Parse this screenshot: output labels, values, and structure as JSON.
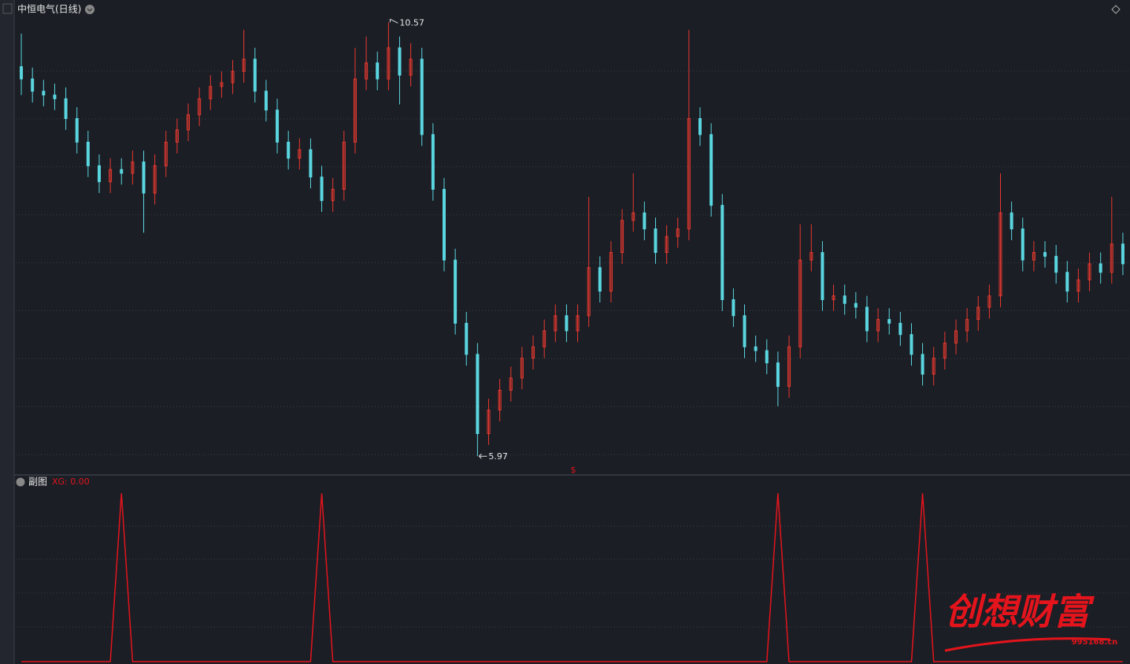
{
  "chart_data": [
    {
      "type": "candlestick",
      "title": "中恒电气(日线)",
      "marker": "$",
      "up_color": "#e8392f",
      "down_color": "#5ad6e0",
      "ylim": [
        5.78,
        10.74
      ],
      "open": [
        10.1,
        9.97,
        9.84,
        9.8,
        9.76,
        9.55,
        9.3,
        9.05,
        8.88,
        9.01,
        8.97,
        9.09,
        8.76,
        9.05,
        9.3,
        9.43,
        9.59,
        9.76,
        9.89,
        9.93,
        10.05,
        10.18,
        9.84,
        9.64,
        9.3,
        9.13,
        9.22,
        8.93,
        8.68,
        8.8,
        9.3,
        9.97,
        10.14,
        9.97,
        10.3,
        10.01,
        10.18,
        9.38,
        8.8,
        8.05,
        7.38,
        7.05,
        6.21,
        6.46,
        6.67,
        6.8,
        7.01,
        7.13,
        7.3,
        7.46,
        7.3,
        7.46,
        7.97,
        7.72,
        8.13,
        8.47,
        8.55,
        8.38,
        8.13,
        8.3,
        8.38,
        9.55,
        9.38,
        8.63,
        7.63,
        7.46,
        7.13,
        7.09,
        6.96,
        6.71,
        7.13,
        8.05,
        8.13,
        7.63,
        7.67,
        7.59,
        7.55,
        7.3,
        7.42,
        7.38,
        7.26,
        7.05,
        6.84,
        7.01,
        7.17,
        7.3,
        7.42,
        7.55,
        7.67,
        8.55,
        8.38,
        8.05,
        8.13,
        8.09,
        7.92,
        7.72,
        7.84,
        8.01,
        7.92,
        8.22
      ],
      "high": [
        10.45,
        10.09,
        9.96,
        9.92,
        9.88,
        9.67,
        9.42,
        9.17,
        9.13,
        9.13,
        9.21,
        9.21,
        9.17,
        9.42,
        9.55,
        9.71,
        9.88,
        10.01,
        10.05,
        10.17,
        10.49,
        10.3,
        9.96,
        9.76,
        9.42,
        9.34,
        9.34,
        9.05,
        8.92,
        9.42,
        10.3,
        10.42,
        10.26,
        10.57,
        10.42,
        10.35,
        10.3,
        9.5,
        8.92,
        8.17,
        7.5,
        7.17,
        6.58,
        6.79,
        6.92,
        7.13,
        7.25,
        7.42,
        7.58,
        7.58,
        7.58,
        8.72,
        8.09,
        8.25,
        8.59,
        8.97,
        8.67,
        8.5,
        8.42,
        8.5,
        10.49,
        9.67,
        9.5,
        8.75,
        7.75,
        7.58,
        7.25,
        7.21,
        7.08,
        7.25,
        8.43,
        8.43,
        8.25,
        7.79,
        7.79,
        7.71,
        7.67,
        7.54,
        7.54,
        7.5,
        7.38,
        7.17,
        7.13,
        7.29,
        7.42,
        7.54,
        7.67,
        7.79,
        8.97,
        8.67,
        8.5,
        8.25,
        8.25,
        8.21,
        8.04,
        7.96,
        8.13,
        8.13,
        8.72,
        8.34
      ],
      "low": [
        9.8,
        9.72,
        9.68,
        9.64,
        9.43,
        9.18,
        8.93,
        8.76,
        8.76,
        8.85,
        8.85,
        8.34,
        8.64,
        8.93,
        9.18,
        9.31,
        9.47,
        9.64,
        9.77,
        9.81,
        9.93,
        9.72,
        9.52,
        9.18,
        9.01,
        9.01,
        8.81,
        8.56,
        8.56,
        8.68,
        9.18,
        9.85,
        9.85,
        9.85,
        9.7,
        9.89,
        9.26,
        8.68,
        7.93,
        7.26,
        6.93,
        5.97,
        6.09,
        6.34,
        6.55,
        6.68,
        6.89,
        7.01,
        7.18,
        7.18,
        7.18,
        7.34,
        7.6,
        7.6,
        8.01,
        8.35,
        8.26,
        8.01,
        8.01,
        8.18,
        8.26,
        9.26,
        8.51,
        7.51,
        7.34,
        7.01,
        6.97,
        6.84,
        6.5,
        6.59,
        7.01,
        7.93,
        7.51,
        7.51,
        7.47,
        7.43,
        7.18,
        7.18,
        7.26,
        7.14,
        6.93,
        6.72,
        6.72,
        6.89,
        7.05,
        7.18,
        7.3,
        7.43,
        7.55,
        8.26,
        7.93,
        7.93,
        7.97,
        7.8,
        7.6,
        7.6,
        7.72,
        7.8,
        7.8,
        7.89
      ],
      "close": [
        9.97,
        9.84,
        9.8,
        9.76,
        9.55,
        9.3,
        9.05,
        8.88,
        9.01,
        8.97,
        9.09,
        8.76,
        9.05,
        9.3,
        9.43,
        9.59,
        9.76,
        9.89,
        9.93,
        10.05,
        10.18,
        9.84,
        9.64,
        9.3,
        9.13,
        9.22,
        8.93,
        8.68,
        8.8,
        9.3,
        9.97,
        10.14,
        9.97,
        10.3,
        10.01,
        10.18,
        9.38,
        8.8,
        8.05,
        7.38,
        7.05,
        6.21,
        6.46,
        6.67,
        6.8,
        7.01,
        7.13,
        7.3,
        7.46,
        7.3,
        7.46,
        7.97,
        7.72,
        8.13,
        8.47,
        8.55,
        8.38,
        8.13,
        8.3,
        8.38,
        9.55,
        9.38,
        8.63,
        7.63,
        7.46,
        7.13,
        7.09,
        6.96,
        6.71,
        7.13,
        8.05,
        8.13,
        7.63,
        7.67,
        7.59,
        7.55,
        7.3,
        7.42,
        7.38,
        7.26,
        7.05,
        6.84,
        7.01,
        7.17,
        7.3,
        7.42,
        7.55,
        7.67,
        8.55,
        8.38,
        8.05,
        8.13,
        8.09,
        7.92,
        7.72,
        7.84,
        8.01,
        7.92,
        8.22,
        8.01
      ]
    },
    {
      "type": "line",
      "title": "副图",
      "legend_label": "XG: 0.00",
      "color": "#e3141c",
      "ylim": [
        0,
        1.02
      ],
      "values": [
        0,
        0,
        0,
        0,
        0,
        0,
        0,
        0,
        0,
        1,
        0,
        0,
        0,
        0,
        0,
        0,
        0,
        0,
        0,
        0,
        0,
        0,
        0,
        0,
        0,
        0,
        0,
        1,
        0,
        0,
        0,
        0,
        0,
        0,
        0,
        0,
        0,
        0,
        0,
        0,
        0,
        0,
        0,
        0,
        0,
        0,
        0,
        0,
        0,
        0,
        0,
        0,
        0,
        0,
        0,
        0,
        0,
        0,
        0,
        0,
        0,
        0,
        0,
        0,
        0,
        0,
        0,
        0,
        1,
        0,
        0,
        0,
        0,
        0,
        0,
        0,
        0,
        0,
        0,
        0,
        0,
        1,
        0,
        0,
        0,
        0,
        0,
        0,
        0,
        0,
        0,
        0,
        0,
        0,
        0,
        0,
        0,
        0,
        0,
        0
      ]
    }
  ],
  "watermark": {
    "title": "创想财富",
    "site": "995168.cn"
  }
}
